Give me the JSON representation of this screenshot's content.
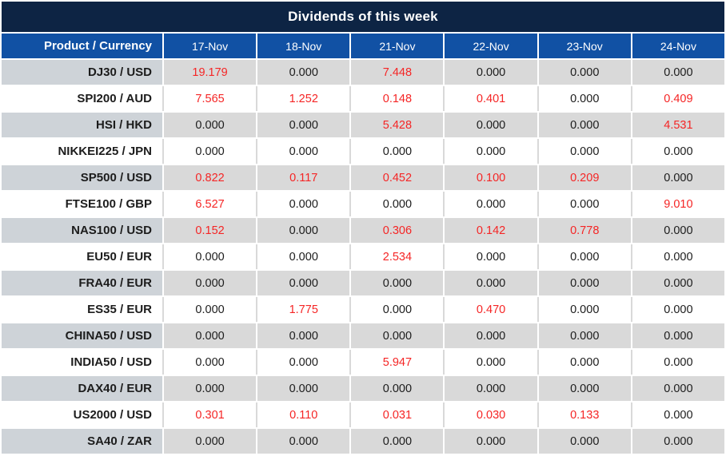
{
  "chart_data": {
    "type": "table",
    "title": "Dividends of this week",
    "columns": [
      "Product / Currency",
      "17-Nov",
      "18-Nov",
      "21-Nov",
      "22-Nov",
      "23-Nov",
      "24-Nov"
    ],
    "rows": [
      {
        "product": "DJ30 / USD",
        "values": [
          "19.179",
          "0.000",
          "7.448",
          "0.000",
          "0.000",
          "0.000"
        ]
      },
      {
        "product": "SPI200 / AUD",
        "values": [
          "7.565",
          "1.252",
          "0.148",
          "0.401",
          "0.000",
          "0.409"
        ]
      },
      {
        "product": "HSI / HKD",
        "values": [
          "0.000",
          "0.000",
          "5.428",
          "0.000",
          "0.000",
          "4.531"
        ]
      },
      {
        "product": "NIKKEI225 / JPN",
        "values": [
          "0.000",
          "0.000",
          "0.000",
          "0.000",
          "0.000",
          "0.000"
        ]
      },
      {
        "product": "SP500 / USD",
        "values": [
          "0.822",
          "0.117",
          "0.452",
          "0.100",
          "0.209",
          "0.000"
        ]
      },
      {
        "product": "FTSE100 / GBP",
        "values": [
          "6.527",
          "0.000",
          "0.000",
          "0.000",
          "0.000",
          "9.010"
        ]
      },
      {
        "product": "NAS100 / USD",
        "values": [
          "0.152",
          "0.000",
          "0.306",
          "0.142",
          "0.778",
          "0.000"
        ]
      },
      {
        "product": "EU50 / EUR",
        "values": [
          "0.000",
          "0.000",
          "2.534",
          "0.000",
          "0.000",
          "0.000"
        ]
      },
      {
        "product": "FRA40 / EUR",
        "values": [
          "0.000",
          "0.000",
          "0.000",
          "0.000",
          "0.000",
          "0.000"
        ]
      },
      {
        "product": "ES35 / EUR",
        "values": [
          "0.000",
          "1.775",
          "0.000",
          "0.470",
          "0.000",
          "0.000"
        ]
      },
      {
        "product": "CHINA50 / USD",
        "values": [
          "0.000",
          "0.000",
          "0.000",
          "0.000",
          "0.000",
          "0.000"
        ]
      },
      {
        "product": "INDIA50 / USD",
        "values": [
          "0.000",
          "0.000",
          "5.947",
          "0.000",
          "0.000",
          "0.000"
        ]
      },
      {
        "product": "DAX40 / EUR",
        "values": [
          "0.000",
          "0.000",
          "0.000",
          "0.000",
          "0.000",
          "0.000"
        ]
      },
      {
        "product": "US2000 / USD",
        "values": [
          "0.301",
          "0.110",
          "0.031",
          "0.030",
          "0.133",
          "0.000"
        ]
      },
      {
        "product": "SA40 / ZAR",
        "values": [
          "0.000",
          "0.000",
          "0.000",
          "0.000",
          "0.000",
          "0.000"
        ]
      }
    ],
    "legend": "non-zero dividend values are shown in red, zero values in black",
    "layout": "first row gray, alternating gray/white rows"
  },
  "colors": {
    "title_bar_bg": "#0d2444",
    "header_bg": "#1151a4",
    "header_text": "#ffffff",
    "row_gray_bg": "#d9d9d9",
    "label_gray_bg": "#ced3d8",
    "row_white_bg": "#ffffff",
    "text_dark": "#1c1c1c",
    "value_nonzero_red": "#f52525",
    "separator_white": "#ffffff",
    "white_row_separator": "#d9d9d9"
  }
}
